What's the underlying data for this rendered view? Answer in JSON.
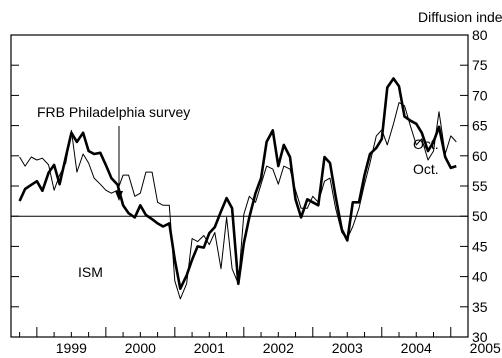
{
  "chart_data": {
    "type": "line",
    "ylabel": "Diffusion index",
    "ylim": [
      30,
      80
    ],
    "yticks": [
      30,
      35,
      40,
      45,
      50,
      55,
      60,
      65,
      70,
      75,
      80
    ],
    "xlim": [
      1998.75,
      2005.0
    ],
    "xticks": [
      "1999",
      "2000",
      "2001",
      "2002",
      "2003",
      "2004",
      "2005"
    ],
    "reference_line": 50,
    "annotations": {
      "frb": "FRB Philadelphia survey",
      "ism": "ISM",
      "oct_upper": "Oct.",
      "oct_lower": "Oct."
    },
    "series": [
      {
        "key": "ism",
        "line_style": "thick",
        "points": [
          [
            1998.75,
            52.5
          ],
          [
            1998.83,
            54.5
          ],
          [
            1998.92,
            55.2
          ],
          [
            1999.0,
            55.8
          ],
          [
            1999.08,
            54.2
          ],
          [
            1999.17,
            57.2
          ],
          [
            1999.25,
            58.5
          ],
          [
            1999.33,
            55.3
          ],
          [
            1999.42,
            59.8
          ],
          [
            1999.5,
            63.8
          ],
          [
            1999.58,
            62.3
          ],
          [
            1999.67,
            63.8
          ],
          [
            1999.75,
            60.8
          ],
          [
            1999.83,
            60.3
          ],
          [
            1999.92,
            60.5
          ],
          [
            2000.0,
            58.5
          ],
          [
            2000.08,
            56.3
          ],
          [
            2000.17,
            55.2
          ],
          [
            2000.25,
            51.8
          ],
          [
            2000.33,
            50.5
          ],
          [
            2000.42,
            49.8
          ],
          [
            2000.5,
            51.8
          ],
          [
            2000.58,
            50.2
          ],
          [
            2000.67,
            49.5
          ],
          [
            2000.75,
            48.8
          ],
          [
            2000.83,
            48.3
          ],
          [
            2000.92,
            48.8
          ],
          [
            2001.0,
            42.8
          ],
          [
            2001.08,
            38.0
          ],
          [
            2001.17,
            40.2
          ],
          [
            2001.25,
            42.8
          ],
          [
            2001.33,
            45.0
          ],
          [
            2001.42,
            44.8
          ],
          [
            2001.5,
            47.2
          ],
          [
            2001.58,
            48.2
          ],
          [
            2001.67,
            50.8
          ],
          [
            2001.75,
            53.0
          ],
          [
            2001.83,
            51.3
          ],
          [
            2001.92,
            38.8
          ],
          [
            2002.0,
            45.5
          ],
          [
            2002.08,
            49.8
          ],
          [
            2002.17,
            53.8
          ],
          [
            2002.25,
            56.3
          ],
          [
            2002.33,
            62.3
          ],
          [
            2002.42,
            64.2
          ],
          [
            2002.5,
            58.3
          ],
          [
            2002.58,
            61.8
          ],
          [
            2002.67,
            59.8
          ],
          [
            2002.75,
            52.8
          ],
          [
            2002.83,
            49.8
          ],
          [
            2002.92,
            52.8
          ],
          [
            2003.0,
            52.3
          ],
          [
            2003.08,
            51.8
          ],
          [
            2003.17,
            59.8
          ],
          [
            2003.25,
            58.8
          ],
          [
            2003.33,
            53.3
          ],
          [
            2003.42,
            47.8
          ],
          [
            2003.5,
            46.0
          ],
          [
            2003.58,
            52.3
          ],
          [
            2003.67,
            52.3
          ],
          [
            2003.75,
            56.8
          ],
          [
            2003.83,
            60.3
          ],
          [
            2003.92,
            61.3
          ],
          [
            2004.0,
            62.8
          ],
          [
            2004.08,
            71.3
          ],
          [
            2004.17,
            72.8
          ],
          [
            2004.25,
            71.5
          ],
          [
            2004.33,
            66.5
          ],
          [
            2004.42,
            65.8
          ],
          [
            2004.5,
            65.3
          ],
          [
            2004.58,
            63.8
          ],
          [
            2004.67,
            60.8
          ],
          [
            2004.75,
            62.3
          ],
          [
            2004.83,
            64.8
          ],
          [
            2004.92,
            59.8
          ],
          [
            2005.0,
            58.0
          ],
          [
            2005.08,
            58.3
          ]
        ]
      },
      {
        "key": "frb",
        "line_style": "thin",
        "points": [
          [
            1998.75,
            59.8
          ],
          [
            1998.83,
            58.3
          ],
          [
            1998.92,
            59.8
          ],
          [
            1999.0,
            59.3
          ],
          [
            1999.08,
            59.6
          ],
          [
            1999.17,
            58.5
          ],
          [
            1999.25,
            54.3
          ],
          [
            1999.33,
            56.8
          ],
          [
            1999.42,
            58.8
          ],
          [
            1999.5,
            64.2
          ],
          [
            1999.58,
            57.3
          ],
          [
            1999.67,
            60.3
          ],
          [
            1999.75,
            58.8
          ],
          [
            1999.83,
            56.3
          ],
          [
            1999.92,
            55.3
          ],
          [
            2000.0,
            54.3
          ],
          [
            2000.08,
            53.8
          ],
          [
            2000.17,
            54.3
          ],
          [
            2000.25,
            56.8
          ],
          [
            2000.33,
            56.8
          ],
          [
            2000.42,
            53.3
          ],
          [
            2000.5,
            53.8
          ],
          [
            2000.58,
            57.3
          ],
          [
            2000.67,
            57.3
          ],
          [
            2000.75,
            52.3
          ],
          [
            2000.83,
            51.8
          ],
          [
            2000.92,
            51.8
          ],
          [
            2001.0,
            39.3
          ],
          [
            2001.08,
            36.3
          ],
          [
            2001.17,
            38.8
          ],
          [
            2001.25,
            46.3
          ],
          [
            2001.33,
            45.8
          ],
          [
            2001.42,
            46.8
          ],
          [
            2001.5,
            45.3
          ],
          [
            2001.58,
            47.3
          ],
          [
            2001.67,
            41.3
          ],
          [
            2001.75,
            49.8
          ],
          [
            2001.83,
            41.3
          ],
          [
            2001.92,
            38.8
          ],
          [
            2002.0,
            50.3
          ],
          [
            2002.08,
            53.3
          ],
          [
            2002.17,
            52.3
          ],
          [
            2002.25,
            55.3
          ],
          [
            2002.33,
            58.3
          ],
          [
            2002.42,
            57.8
          ],
          [
            2002.5,
            55.3
          ],
          [
            2002.58,
            58.3
          ],
          [
            2002.67,
            57.8
          ],
          [
            2002.75,
            54.3
          ],
          [
            2002.83,
            51.3
          ],
          [
            2002.92,
            51.3
          ],
          [
            2003.0,
            53.3
          ],
          [
            2003.08,
            52.3
          ],
          [
            2003.17,
            55.8
          ],
          [
            2003.25,
            56.3
          ],
          [
            2003.33,
            51.3
          ],
          [
            2003.42,
            47.3
          ],
          [
            2003.5,
            46.3
          ],
          [
            2003.58,
            48.3
          ],
          [
            2003.67,
            51.3
          ],
          [
            2003.75,
            55.3
          ],
          [
            2003.83,
            58.8
          ],
          [
            2003.92,
            63.3
          ],
          [
            2004.0,
            64.3
          ],
          [
            2004.08,
            61.8
          ],
          [
            2004.17,
            65.3
          ],
          [
            2004.25,
            68.8
          ],
          [
            2004.33,
            68.3
          ],
          [
            2004.42,
            64.8
          ],
          [
            2004.5,
            61.8
          ],
          [
            2004.58,
            62.8
          ],
          [
            2004.67,
            59.3
          ],
          [
            2004.75,
            60.8
          ],
          [
            2004.83,
            67.3
          ],
          [
            2004.92,
            60.3
          ],
          [
            2005.0,
            63.3
          ],
          [
            2005.08,
            62.3
          ]
        ]
      }
    ]
  }
}
